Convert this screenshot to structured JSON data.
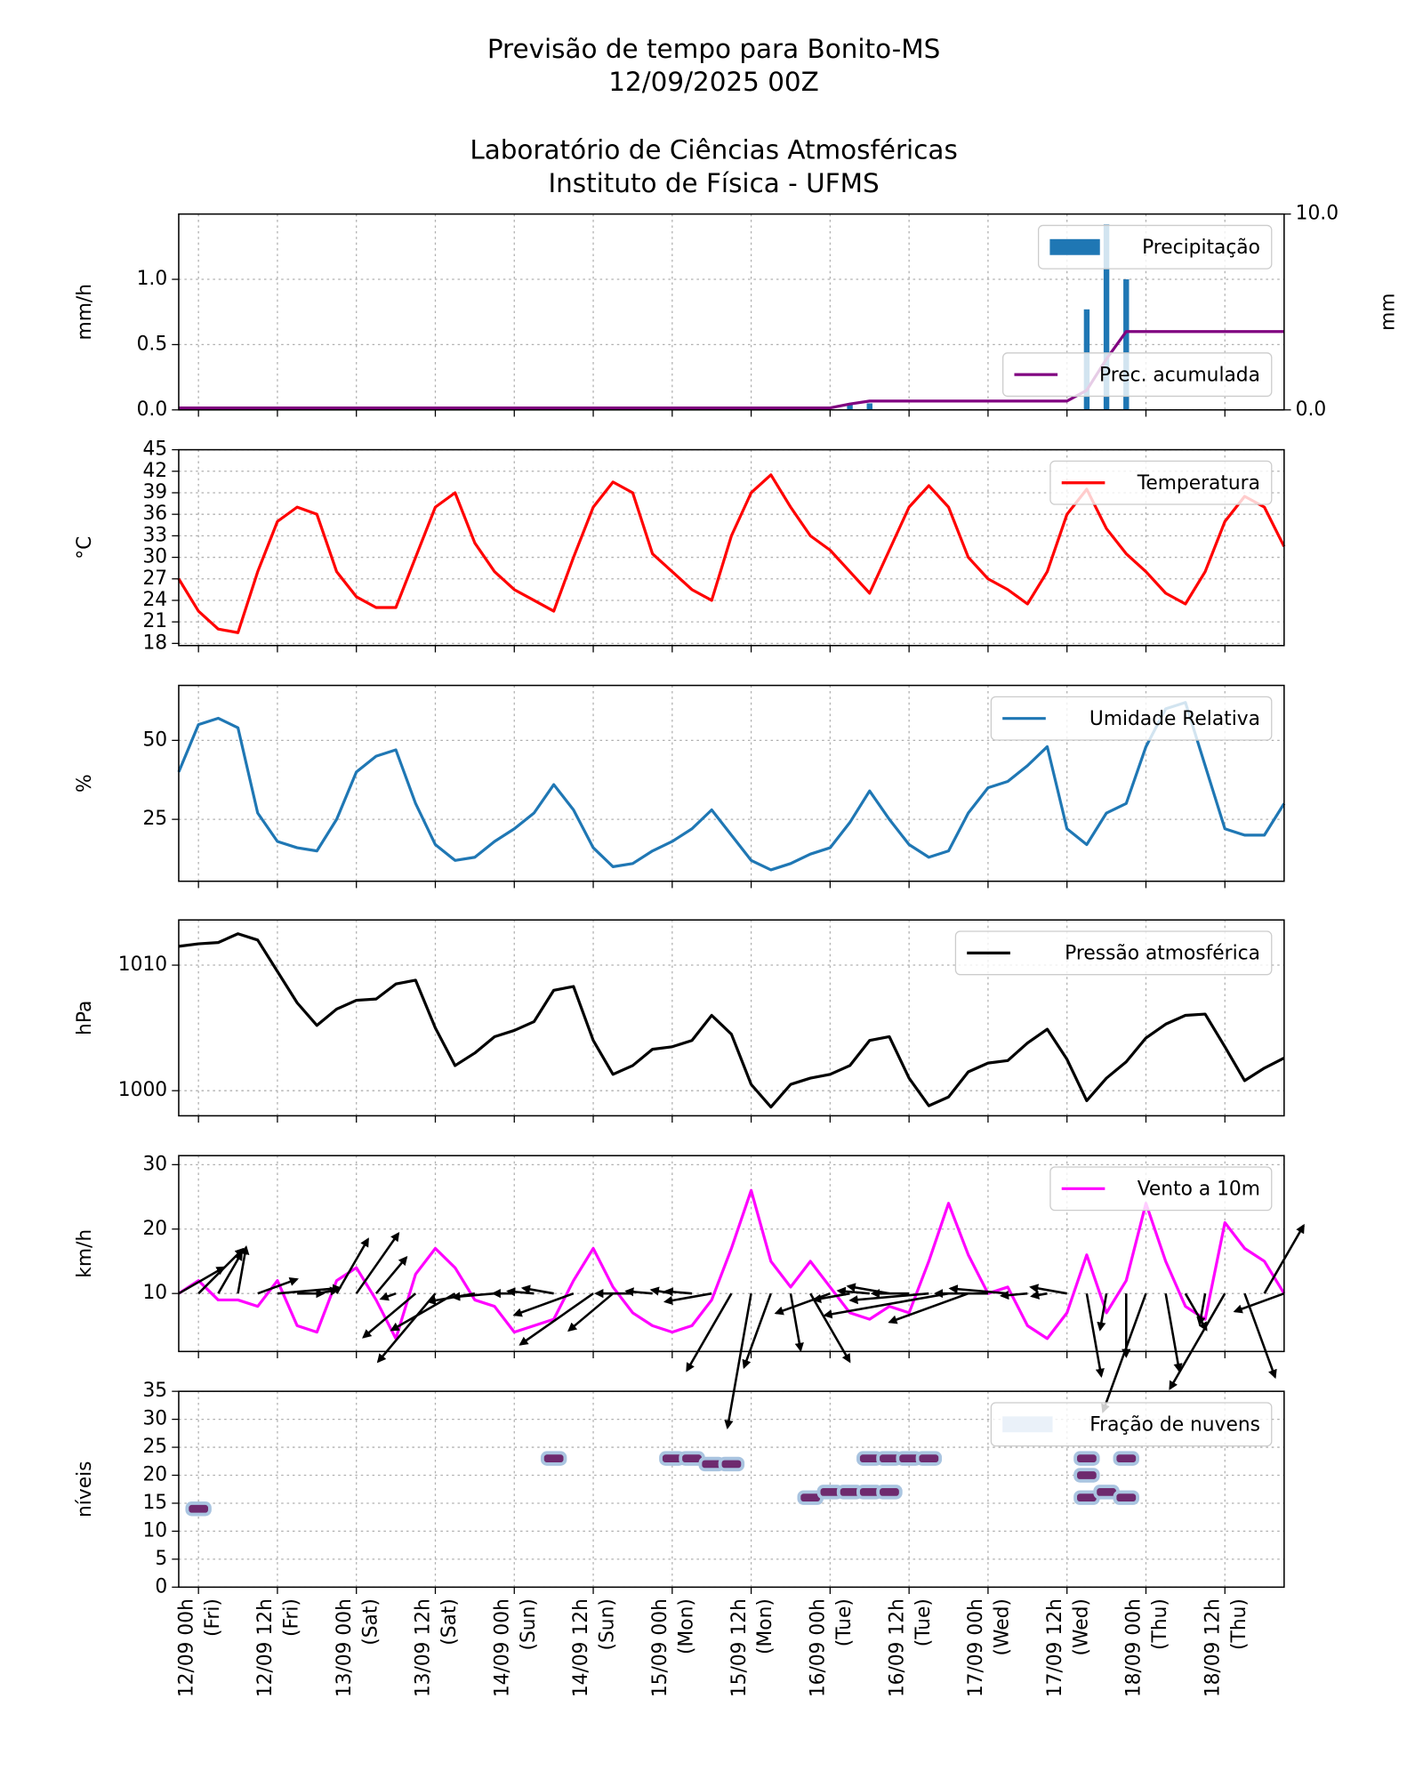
{
  "header": {
    "title": [
      "Previsão de tempo para Bonito-MS",
      "12/09/2025 00Z",
      "Laboratório de Ciências Atmosféricas",
      "Instituto de Física - UFMS"
    ]
  },
  "x_axis": {
    "categories": [
      null,
      "12/09 00h",
      null,
      null,
      null,
      "12/09 12h",
      null,
      null,
      null,
      "13/09 00h",
      null,
      null,
      null,
      "13/09 12h",
      null,
      null,
      null,
      "14/09 00h",
      null,
      null,
      null,
      "14/09 12h",
      null,
      null,
      null,
      "15/09 00h",
      null,
      null,
      null,
      "15/09 12h",
      null,
      null,
      null,
      "16/09 00h",
      null,
      null,
      null,
      "16/09 12h",
      null,
      null,
      null,
      "17/09 00h",
      null,
      null,
      null,
      "17/09 12h",
      null,
      null,
      null,
      "18/09 00h",
      null,
      null,
      null,
      "18/09 12h",
      null,
      null,
      null
    ],
    "days": [
      null,
      "(Fri)",
      null,
      null,
      null,
      "(Fri)",
      null,
      null,
      null,
      "(Sat)",
      null,
      null,
      null,
      "(Sat)",
      null,
      null,
      null,
      "(Sun)",
      null,
      null,
      null,
      "(Sun)",
      null,
      null,
      null,
      "(Mon)",
      null,
      null,
      null,
      "(Mon)",
      null,
      null,
      null,
      "(Tue)",
      null,
      null,
      null,
      "(Tue)",
      null,
      null,
      null,
      "(Wed)",
      null,
      null,
      null,
      "(Wed)",
      null,
      null,
      null,
      "(Thu)",
      null,
      null,
      null,
      "(Thu)",
      null,
      null,
      null
    ]
  },
  "chart_data": [
    {
      "type": "bar",
      "ylabel": "mm/h",
      "y2label": "mm",
      "grid": true,
      "legend": "upper right",
      "ylim": [
        0,
        1.5
      ],
      "yticks": [
        {
          "value": 0,
          "label": "0.0"
        },
        {
          "value": 0.5,
          "label": "0.5"
        },
        {
          "value": 1,
          "label": "1.0"
        }
      ],
      "y2lim": [
        0,
        10
      ],
      "y2ticks": [
        {
          "value": 0,
          "label": "0.0"
        },
        {
          "value": 10,
          "label": "10.0"
        }
      ],
      "series": [
        {
          "name": "Precipitação",
          "color": "#1f77b4",
          "type": "bar",
          "values": [
            0,
            0,
            0,
            0,
            0,
            0,
            0,
            0,
            0,
            0,
            0,
            0,
            0,
            0,
            0,
            0,
            0,
            0,
            0,
            0,
            0,
            0,
            0,
            0,
            0,
            0,
            0,
            0,
            0,
            0,
            0,
            0,
            0,
            0,
            0.05,
            0.05,
            0,
            0,
            0,
            0,
            0,
            0,
            0,
            0,
            0,
            0,
            0.77,
            1.42,
            1.0,
            0,
            0,
            0,
            0,
            0,
            0,
            0,
            0
          ]
        },
        {
          "name": "Prec. acumulada",
          "color": "#800080",
          "type": "line",
          "axis": "y2",
          "values": [
            0.1,
            0.1,
            0.1,
            0.1,
            0.1,
            0.1,
            0.1,
            0.1,
            0.1,
            0.1,
            0.1,
            0.1,
            0.1,
            0.1,
            0.1,
            0.1,
            0.1,
            0.1,
            0.1,
            0.1,
            0.1,
            0.1,
            0.1,
            0.1,
            0.1,
            0.1,
            0.1,
            0.1,
            0.1,
            0.1,
            0.1,
            0.1,
            0.1,
            0.1,
            0.3,
            0.45,
            0.45,
            0.45,
            0.45,
            0.45,
            0.45,
            0.45,
            0.45,
            0.45,
            0.45,
            0.45,
            1.0,
            2.6,
            4.0,
            4.0,
            4.0,
            4.0,
            4.0,
            4.0,
            4.0,
            4.0,
            4.0
          ]
        }
      ]
    },
    {
      "type": "line",
      "ylabel": "°C",
      "grid": true,
      "legend": "upper right",
      "ylim": [
        17.7,
        45
      ],
      "yticks": [
        18,
        21,
        24,
        27,
        30,
        33,
        36,
        39,
        42,
        45
      ],
      "series": [
        {
          "name": "Temperatura",
          "color": "#ff0000",
          "values": [
            27,
            22.5,
            20,
            19.5,
            28,
            35,
            37,
            36,
            28,
            24.5,
            23,
            23,
            30,
            37,
            39,
            32,
            28,
            25.5,
            24,
            22.5,
            30,
            37,
            40.5,
            39,
            30.5,
            28,
            25.5,
            24,
            33,
            39,
            41.5,
            37,
            33,
            31,
            28,
            25,
            31,
            37,
            40,
            37,
            30,
            27,
            25.5,
            23.5,
            28,
            36,
            39.5,
            34,
            30.5,
            28,
            25,
            23.5,
            28,
            35,
            38.5,
            37,
            31.5
          ]
        }
      ]
    },
    {
      "type": "line",
      "ylabel": "%",
      "grid": true,
      "legend": "upper right",
      "ylim": [
        5.4,
        67.4
      ],
      "yticks": [
        25,
        50
      ],
      "series": [
        {
          "name": "Umidade Relativa",
          "color": "#1f77b4",
          "values": [
            40,
            55,
            57,
            54,
            27,
            18,
            16,
            15,
            25,
            40,
            45,
            47,
            30,
            17,
            12,
            13,
            18,
            22,
            27,
            36,
            28,
            16,
            10,
            11,
            15,
            18,
            22,
            28,
            20,
            12,
            9,
            11,
            14,
            16,
            24,
            34,
            25,
            17,
            13,
            15,
            27,
            35,
            37,
            42,
            48,
            22,
            17,
            27,
            30,
            48,
            60,
            62,
            42,
            22,
            20,
            20,
            30
          ]
        }
      ]
    },
    {
      "type": "line",
      "ylabel": "hPa",
      "grid": true,
      "legend": "upper right",
      "ylim": [
        998,
        1013.6
      ],
      "yticks": [
        1000,
        1010
      ],
      "series": [
        {
          "name": "Pressão atmosférica",
          "color": "#000000",
          "values": [
            1011.5,
            1011.7,
            1011.8,
            1012.5,
            1012,
            1009.5,
            1007,
            1005.2,
            1006.5,
            1007.2,
            1007.3,
            1008.5,
            1008.8,
            1005,
            1002,
            1003,
            1004.3,
            1004.8,
            1005.5,
            1008,
            1008.3,
            1004,
            1001.3,
            1002,
            1003.3,
            1003.5,
            1004,
            1006,
            1004.5,
            1000.5,
            998.7,
            1000.5,
            1001,
            1001.3,
            1002,
            1004,
            1004.3,
            1001,
            998.8,
            999.5,
            1001.5,
            1002.2,
            1002.4,
            1003.8,
            1004.9,
            1002.5,
            999.2,
            1001,
            1002.3,
            1004.2,
            1005.3,
            1006,
            1006.1,
            1003.5,
            1000.8,
            1001.8,
            1002.6
          ]
        }
      ]
    },
    {
      "type": "line",
      "ylabel": "km/h",
      "grid": true,
      "legend": "upper right",
      "ylim": [
        1,
        31.4
      ],
      "yticks": [
        10,
        20,
        30
      ],
      "series": [
        {
          "name": "Vento a 10m",
          "color": "#ff00ff",
          "values": [
            10,
            12,
            9,
            9,
            8,
            12,
            5,
            4,
            12,
            14,
            9,
            3,
            13,
            17,
            14,
            9,
            8,
            4,
            5,
            6,
            12,
            17,
            11,
            7,
            5,
            4,
            5,
            9,
            17,
            26,
            15,
            11,
            15,
            11,
            7,
            6,
            8,
            7,
            15,
            24,
            16,
            10,
            11,
            5,
            3,
            7,
            16,
            7,
            12,
            24,
            15,
            8,
            6,
            21,
            17,
            15,
            10
          ]
        }
      ],
      "directions": [
        30,
        45,
        60,
        80,
        20,
        5,
        0,
        10,
        60,
        55,
        50,
        200,
        220,
        230,
        210,
        190,
        185,
        180,
        175,
        170,
        200,
        215,
        220,
        180,
        175,
        170,
        175,
        190,
        240,
        260,
        250,
        280,
        300,
        200,
        190,
        175,
        170,
        180,
        185,
        190,
        200,
        180,
        175,
        185,
        190,
        170,
        280,
        260,
        270,
        250,
        280,
        300,
        260,
        240,
        290,
        60,
        200
      ]
    },
    {
      "type": "heatmap",
      "ylabel": "níveis",
      "grid": true,
      "legend": "upper right",
      "ylim": [
        0,
        35
      ],
      "yticks": [
        0,
        5,
        10,
        15,
        20,
        25,
        30,
        35
      ],
      "series": [
        {
          "name": "Fração de nuvens",
          "color": "#eaf1f9",
          "cells": [
            [
              1,
              14
            ],
            [
              19,
              23
            ],
            [
              25,
              23
            ],
            [
              26,
              23
            ],
            [
              27,
              22
            ],
            [
              28,
              22
            ],
            [
              32,
              16
            ],
            [
              33,
              17
            ],
            [
              34,
              17
            ],
            [
              35,
              17
            ],
            [
              36,
              17
            ],
            [
              35,
              23
            ],
            [
              36,
              23
            ],
            [
              37,
              23
            ],
            [
              38,
              23
            ],
            [
              46,
              23
            ],
            [
              46,
              20
            ],
            [
              46,
              16
            ],
            [
              47,
              17
            ],
            [
              48,
              23
            ],
            [
              48,
              16
            ]
          ]
        }
      ]
    }
  ]
}
